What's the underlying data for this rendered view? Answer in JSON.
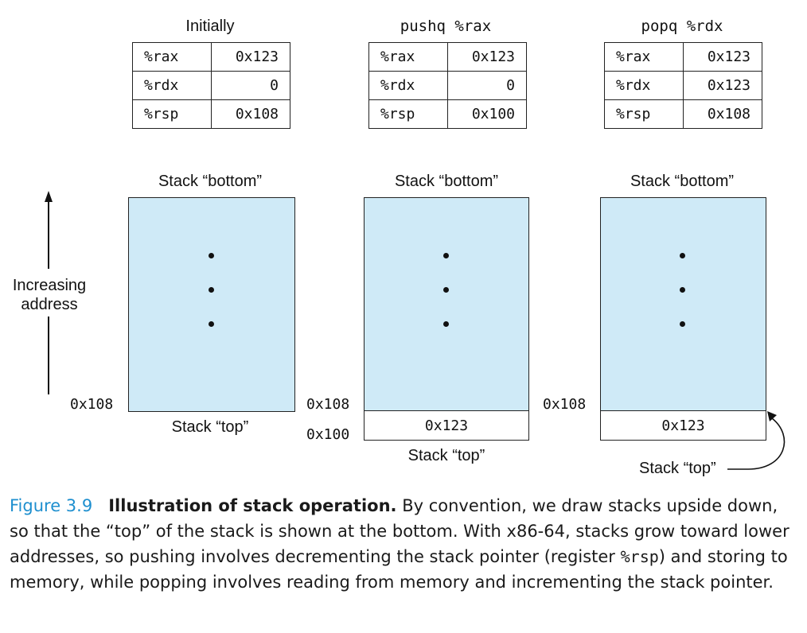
{
  "panels": [
    {
      "title": "Initially",
      "registers": [
        {
          "name": "%rax",
          "value": "0x123"
        },
        {
          "name": "%rdx",
          "value": "0"
        },
        {
          "name": "%rsp",
          "value": "0x108"
        }
      ],
      "stack_bottom_label": "Stack “bottom”",
      "stack_top_label": "Stack “top”",
      "addresses": [
        "0x108"
      ],
      "cells": []
    },
    {
      "title": "pushq %rax",
      "registers": [
        {
          "name": "%rax",
          "value": "0x123"
        },
        {
          "name": "%rdx",
          "value": "0"
        },
        {
          "name": "%rsp",
          "value": "0x100"
        }
      ],
      "stack_bottom_label": "Stack “bottom”",
      "stack_top_label": "Stack “top”",
      "addresses": [
        "0x108",
        "0x100"
      ],
      "cells": [
        "0x123"
      ]
    },
    {
      "title": "popq %rdx",
      "registers": [
        {
          "name": "%rax",
          "value": "0x123"
        },
        {
          "name": "%rdx",
          "value": "0x123"
        },
        {
          "name": "%rsp",
          "value": "0x108"
        }
      ],
      "stack_bottom_label": "Stack “bottom”",
      "stack_top_label": "Stack “top”",
      "addresses": [
        "0x108"
      ],
      "cells": [
        "0x123"
      ]
    }
  ],
  "axis": {
    "label_line1": "Increasing",
    "label_line2": "address"
  },
  "caption": {
    "figure_number": "Figure 3.9",
    "title": "Illustration of stack operation.",
    "text_1": " By convention, we draw stacks upside down, so that the “top” of the stack is shown at the bottom. With x86-64, stacks grow toward lower addresses, so pushing involves decrementing the stack pointer (register ",
    "code": "%rsp",
    "text_2": ") and storing to memory, while popping involves reading from memory and incrementing the stack pointer."
  }
}
